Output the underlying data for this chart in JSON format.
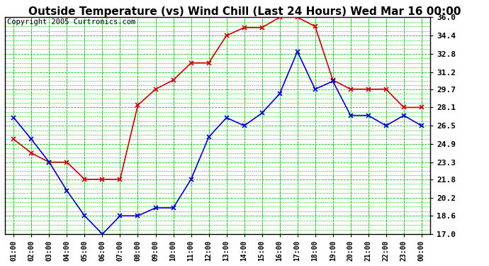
{
  "title": "Outside Temperature (vs) Wind Chill (Last 24 Hours) Wed Mar 16 00:00",
  "copyright": "Copyright 2005 Curtronics.com",
  "x_labels": [
    "01:00",
    "02:00",
    "03:00",
    "04:00",
    "05:00",
    "06:00",
    "07:00",
    "08:00",
    "09:00",
    "10:00",
    "11:00",
    "12:00",
    "13:00",
    "14:00",
    "15:00",
    "16:00",
    "17:00",
    "18:00",
    "19:00",
    "20:00",
    "21:00",
    "22:00",
    "23:00",
    "00:00"
  ],
  "y_ticks": [
    17.0,
    18.6,
    20.2,
    21.8,
    23.3,
    24.9,
    26.5,
    28.1,
    29.7,
    31.2,
    32.8,
    34.4,
    36.0
  ],
  "ylim": [
    17.0,
    36.0
  ],
  "red_line": [
    25.3,
    24.1,
    23.3,
    23.3,
    21.8,
    21.8,
    21.8,
    28.3,
    29.7,
    30.5,
    32.0,
    32.0,
    34.4,
    35.1,
    35.1,
    36.0,
    36.0,
    35.2,
    30.5,
    29.7,
    29.7,
    29.7,
    28.1,
    28.1
  ],
  "blue_line": [
    27.2,
    25.3,
    23.3,
    20.8,
    18.6,
    17.0,
    18.6,
    18.6,
    19.3,
    19.3,
    21.8,
    25.5,
    27.2,
    26.5,
    27.6,
    29.3,
    33.0,
    29.7,
    30.4,
    27.4,
    27.4,
    26.5,
    27.4,
    26.5
  ],
  "red_color": "#cc0000",
  "blue_color": "#0000cc",
  "bg_color": "#ffffff",
  "plot_bg_color": "#ffffff",
  "grid_color": "#00cc00",
  "title_fontsize": 11,
  "copyright_fontsize": 7.5
}
